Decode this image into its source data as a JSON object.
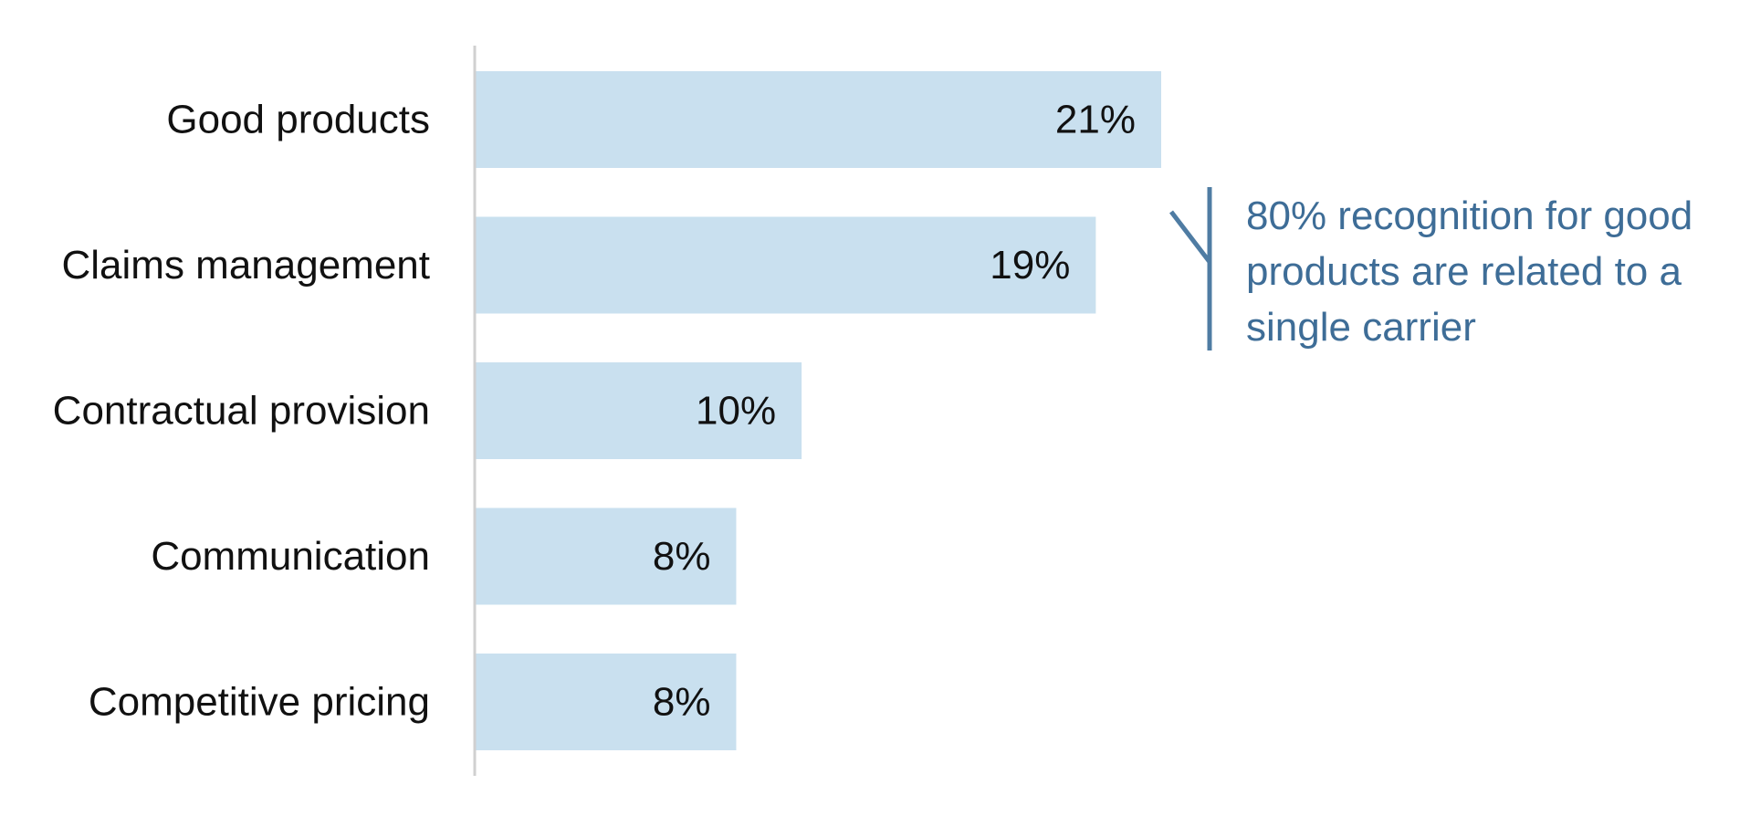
{
  "chart_data": {
    "type": "bar",
    "orientation": "horizontal",
    "categories": [
      "Good products",
      "Claims management",
      "Contractual provision",
      "Communication",
      "Competitive pricing"
    ],
    "values": [
      21,
      19,
      10,
      8,
      8
    ],
    "value_labels": [
      "21%",
      "19%",
      "10%",
      "8%",
      "8%"
    ],
    "xlim": [
      0,
      21
    ],
    "grid": false,
    "legend": "none",
    "title": "",
    "xlabel": "",
    "ylabel": ""
  },
  "annotation": {
    "text": "80% recognition for good products are related to a single carrier"
  },
  "colors": {
    "bar": "#C9E0EF",
    "axis": "#D0D0D0",
    "bracket": "#4F7CA3",
    "annotation_text": "#3E6D97",
    "label_text": "#111111"
  }
}
